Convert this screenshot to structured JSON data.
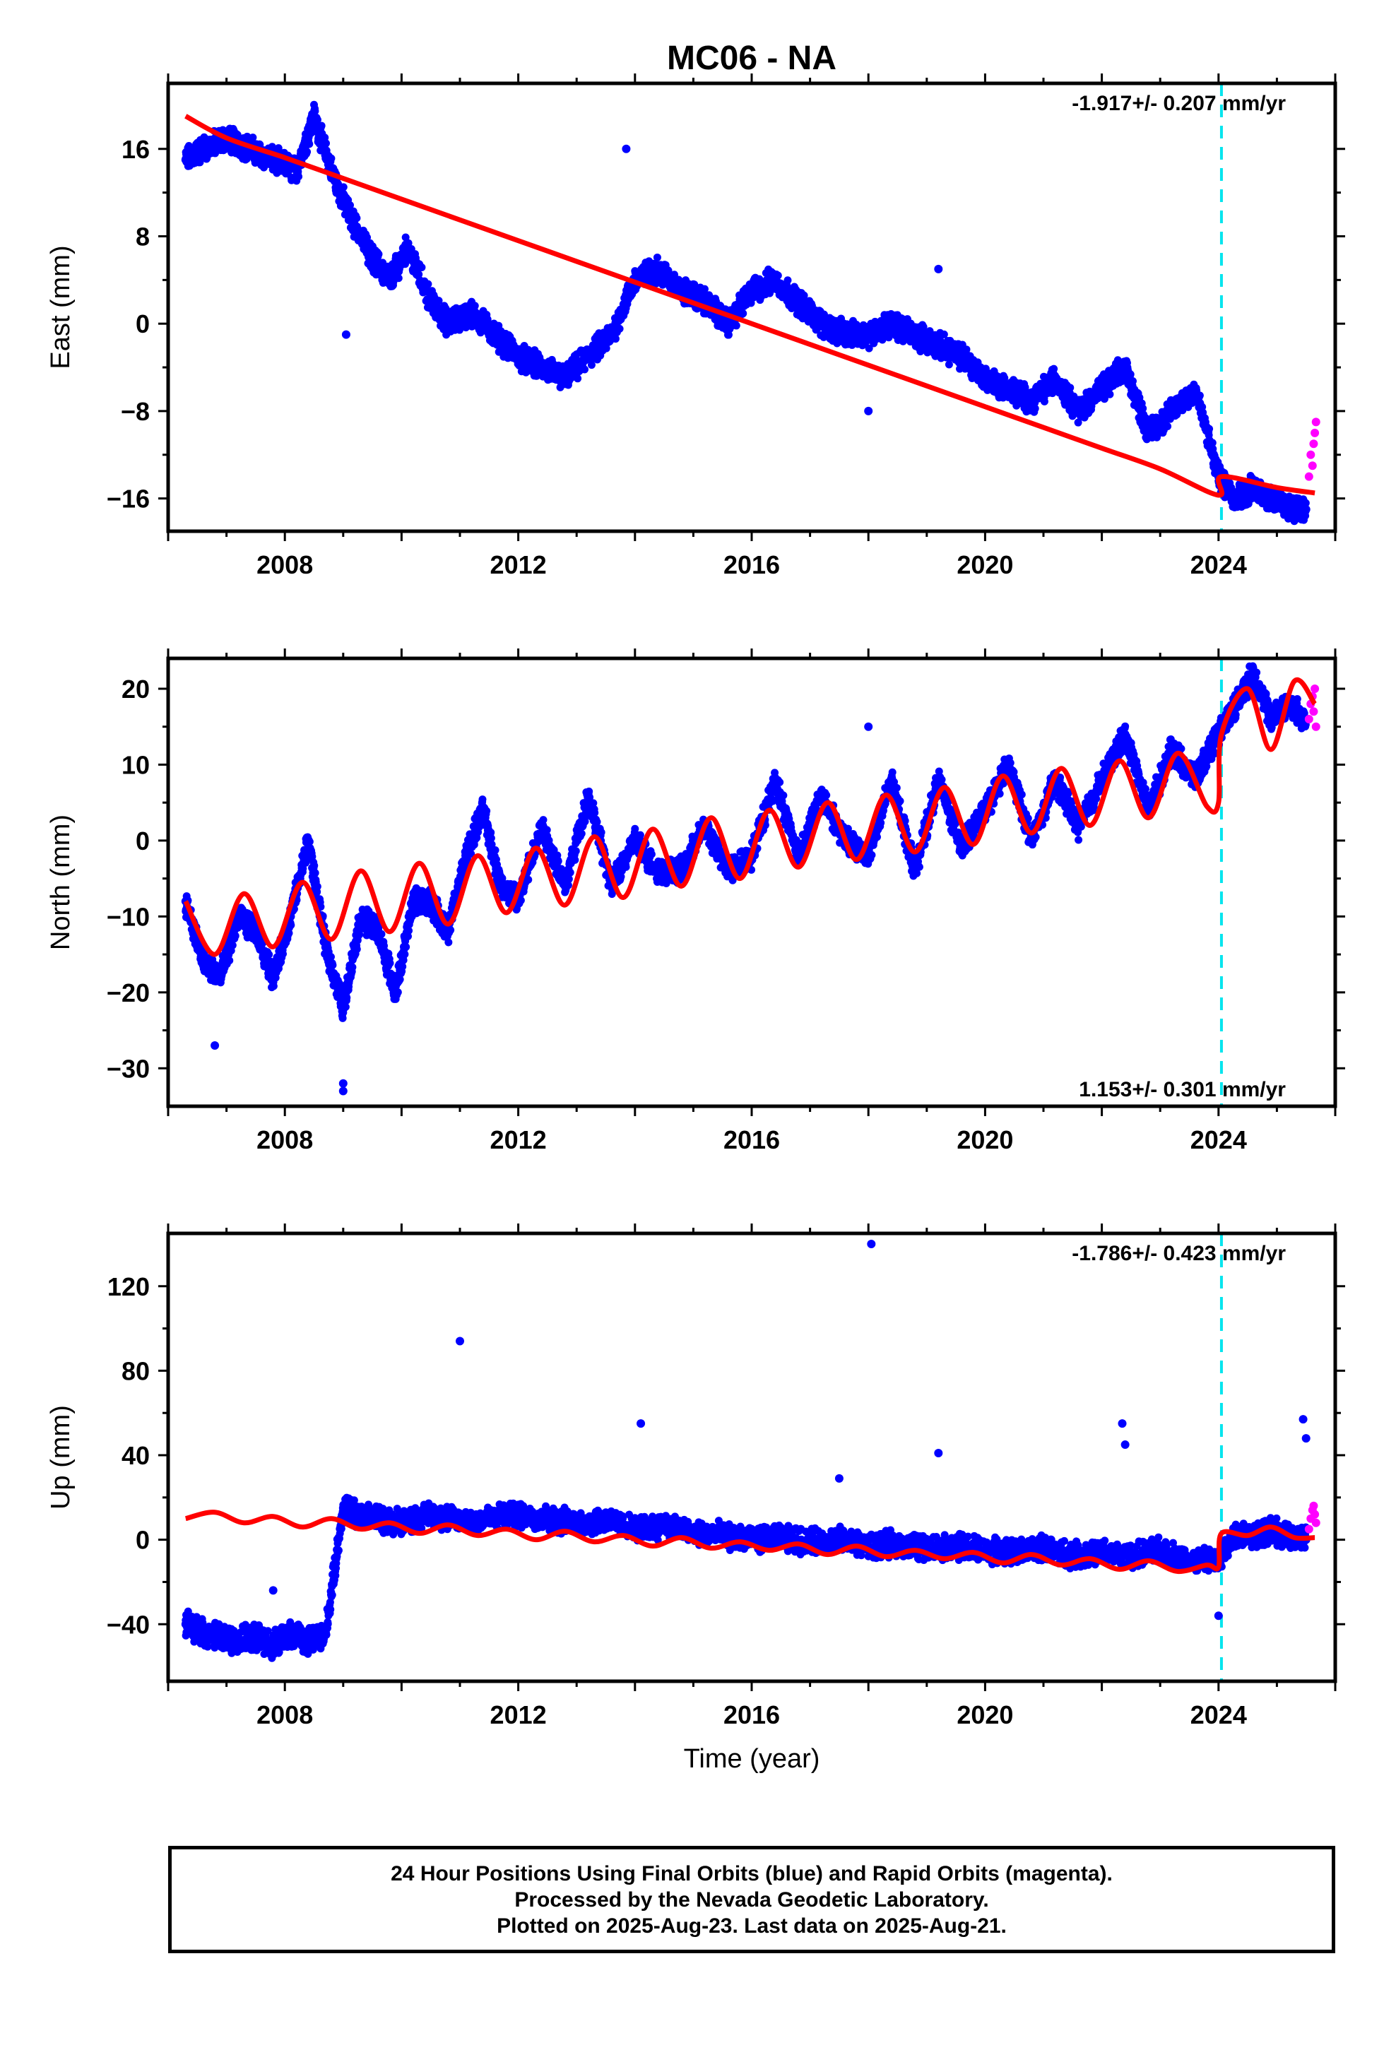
{
  "title": "MC06 - NA",
  "x_axis_label": "Time (year)",
  "footer": [
    "24 Hour Positions Using Final Orbits (blue) and Rapid Orbits (magenta).",
    "Processed by the Nevada Geodetic Laboratory.",
    "Plotted on 2025-Aug-23. Last data on 2025-Aug-21."
  ],
  "colors": {
    "final": "#0000ff",
    "rapid": "#ff00ff",
    "model": "#ff0000",
    "event": "#00e5ee"
  },
  "chart_data": [
    {
      "type": "scatter",
      "component": "east",
      "ylabel": "East (mm)",
      "rate_text": "-1.917+/- 0.207 mm/yr",
      "rate_position": "top-right",
      "xlim": [
        2006.0,
        2026.0
      ],
      "ylim": [
        -19,
        22
      ],
      "x_ticks": [
        2008,
        2012,
        2016,
        2020,
        2024
      ],
      "y_ticks": [
        -16,
        -8,
        0,
        8,
        16
      ],
      "event_line_x": 2024.05,
      "series": [
        {
          "role": "final",
          "x": [
            2006.3,
            2006.6,
            2007.0,
            2007.4,
            2007.8,
            2008.2,
            2008.5,
            2008.8,
            2009.1,
            2009.5,
            2009.8,
            2010.1,
            2010.5,
            2010.8,
            2011.2,
            2011.6,
            2012.0,
            2012.4,
            2012.8,
            2013.2,
            2013.6,
            2014.0,
            2014.4,
            2014.8,
            2015.2,
            2015.6,
            2016.0,
            2016.4,
            2016.8,
            2017.2,
            2017.6,
            2018.0,
            2018.4,
            2018.8,
            2019.2,
            2019.6,
            2020.0,
            2020.4,
            2020.8,
            2021.2,
            2021.6,
            2022.0,
            2022.4,
            2022.8,
            2023.2,
            2023.6,
            2024.0,
            2024.3,
            2024.6,
            2024.9,
            2025.2,
            2025.5
          ],
          "y": [
            15,
            16,
            17,
            16,
            15,
            14,
            19,
            14,
            10,
            6,
            4,
            7,
            2,
            0,
            1,
            -1,
            -3,
            -4,
            -5,
            -3,
            -1,
            4,
            5,
            3,
            2,
            0,
            3,
            4,
            2,
            0,
            -1,
            -1,
            0,
            -1,
            -2,
            -3,
            -5,
            -6,
            -7,
            -5,
            -8,
            -6,
            -4,
            -10,
            -8,
            -6,
            -14,
            -16,
            -15,
            -16,
            -17,
            -17
          ]
        },
        {
          "role": "rapid",
          "x": [
            2025.55,
            2025.58,
            2025.61,
            2025.63,
            2025.65,
            2025.67
          ],
          "y": [
            -14,
            -12,
            -13,
            -11,
            -10,
            -9
          ]
        },
        {
          "role": "outlier",
          "x": [
            2013.85,
            2009.05,
            2019.2,
            2018.0
          ],
          "y": [
            16,
            -1,
            5,
            -8
          ]
        },
        {
          "role": "model",
          "x": [
            2006.3,
            2007.0,
            2008.0,
            2009.0,
            2010.0,
            2011.0,
            2012.0,
            2013.0,
            2014.0,
            2015.0,
            2016.0,
            2017.0,
            2018.0,
            2019.0,
            2020.0,
            2021.0,
            2022.0,
            2023.0,
            2024.0,
            2024.05,
            2025.0,
            2025.65
          ],
          "y": [
            19,
            17,
            15.2,
            13.3,
            11.4,
            9.5,
            7.6,
            5.7,
            3.8,
            1.9,
            0,
            -1.9,
            -3.8,
            -5.7,
            -7.6,
            -9.5,
            -11.4,
            -13.3,
            -15.7,
            -14,
            -15,
            -15.5
          ]
        }
      ]
    },
    {
      "type": "scatter",
      "component": "north",
      "ylabel": "North (mm)",
      "rate_text": "1.153+/- 0.301 mm/yr",
      "rate_position": "bottom-right",
      "xlim": [
        2006.0,
        2026.0
      ],
      "ylim": [
        -35,
        24
      ],
      "x_ticks": [
        2008,
        2012,
        2016,
        2020,
        2024
      ],
      "y_ticks": [
        -30,
        -20,
        -10,
        0,
        10,
        20
      ],
      "event_line_x": 2024.05,
      "series": [
        {
          "role": "final",
          "x": [
            2006.3,
            2006.6,
            2006.9,
            2007.2,
            2007.5,
            2007.8,
            2008.1,
            2008.4,
            2008.7,
            2009.0,
            2009.3,
            2009.6,
            2009.9,
            2010.2,
            2010.5,
            2010.8,
            2011.1,
            2011.4,
            2011.7,
            2012.0,
            2012.4,
            2012.8,
            2013.2,
            2013.6,
            2014.0,
            2014.4,
            2014.8,
            2015.2,
            2015.6,
            2016.0,
            2016.4,
            2016.8,
            2017.2,
            2017.6,
            2018.0,
            2018.4,
            2018.8,
            2019.2,
            2019.6,
            2020.0,
            2020.4,
            2020.8,
            2021.2,
            2021.6,
            2022.0,
            2022.4,
            2022.8,
            2023.2,
            2023.6,
            2024.0,
            2024.3,
            2024.6,
            2024.9,
            2025.2,
            2025.5
          ],
          "y": [
            -8,
            -16,
            -18,
            -10,
            -12,
            -18,
            -10,
            0,
            -14,
            -22,
            -10,
            -12,
            -20,
            -8,
            -8,
            -12,
            -2,
            4,
            -6,
            -8,
            2,
            -6,
            6,
            -6,
            0,
            -4,
            -4,
            2,
            -4,
            -2,
            8,
            -2,
            6,
            0,
            -2,
            8,
            -4,
            8,
            -1,
            4,
            10,
            0,
            8,
            2,
            8,
            14,
            4,
            12,
            8,
            14,
            18,
            22,
            16,
            18,
            16
          ]
        },
        {
          "role": "rapid",
          "x": [
            2025.55,
            2025.58,
            2025.61,
            2025.63,
            2025.65,
            2025.67
          ],
          "y": [
            16,
            18,
            19,
            17,
            20,
            15
          ]
        },
        {
          "role": "outlier",
          "x": [
            2009.0,
            2009.0,
            2018.0,
            2006.8
          ],
          "y": [
            -32,
            -33,
            15,
            -27
          ]
        },
        {
          "role": "model",
          "x": [
            2006.3,
            2006.8,
            2007.3,
            2007.8,
            2008.3,
            2008.8,
            2009.3,
            2009.8,
            2010.3,
            2010.8,
            2011.3,
            2011.8,
            2012.3,
            2012.8,
            2013.3,
            2013.8,
            2014.3,
            2014.8,
            2015.3,
            2015.8,
            2016.3,
            2016.8,
            2017.3,
            2017.8,
            2018.3,
            2018.8,
            2019.3,
            2019.8,
            2020.3,
            2020.8,
            2021.3,
            2021.8,
            2022.3,
            2022.8,
            2023.3,
            2023.8,
            2024.0,
            2024.05,
            2024.5,
            2024.9,
            2025.3,
            2025.65
          ],
          "y": [
            -8,
            -15,
            -7,
            -14,
            -5.5,
            -13,
            -4,
            -12,
            -3,
            -11,
            -2,
            -9.5,
            -1,
            -8.5,
            0.5,
            -7.5,
            1.5,
            -6,
            3,
            -5,
            4,
            -3.5,
            5,
            -2.5,
            6,
            -1.5,
            7,
            -0.5,
            8.5,
            1,
            9.5,
            2,
            10.5,
            3,
            11.5,
            4.5,
            5,
            14,
            20,
            12,
            21,
            18
          ]
        }
      ]
    },
    {
      "type": "scatter",
      "component": "up",
      "ylabel": "Up (mm)",
      "rate_text": "-1.786+/- 0.423 mm/yr",
      "rate_position": "top-right",
      "xlim": [
        2006.0,
        2026.0
      ],
      "ylim": [
        -67,
        145
      ],
      "x_ticks": [
        2008,
        2012,
        2016,
        2020,
        2024
      ],
      "y_ticks": [
        -40,
        0,
        40,
        80,
        120
      ],
      "event_line_x": 2024.05,
      "series": [
        {
          "role": "final",
          "x": [
            2006.3,
            2006.6,
            2006.9,
            2007.2,
            2007.5,
            2007.8,
            2008.1,
            2008.4,
            2008.7,
            2009.0,
            2009.3,
            2009.6,
            2010.0,
            2010.5,
            2011.0,
            2011.5,
            2012.0,
            2012.5,
            2013.0,
            2013.5,
            2014.0,
            2014.5,
            2015.0,
            2015.5,
            2016.0,
            2016.5,
            2017.0,
            2017.5,
            2018.0,
            2018.5,
            2019.0,
            2019.5,
            2020.0,
            2020.5,
            2021.0,
            2021.5,
            2022.0,
            2022.5,
            2023.0,
            2023.5,
            2024.0,
            2024.3,
            2024.6,
            2024.9,
            2025.2,
            2025.5
          ],
          "y": [
            -40,
            -44,
            -46,
            -48,
            -46,
            -50,
            -45,
            -48,
            -44,
            15,
            12,
            10,
            8,
            12,
            9,
            10,
            12,
            10,
            8,
            9,
            5,
            7,
            3,
            2,
            0,
            1,
            -1,
            0,
            -3,
            -2,
            -4,
            -3,
            -5,
            -6,
            -4,
            -7,
            -6,
            -8,
            -5,
            -10,
            -10,
            3,
            2,
            5,
            1,
            0
          ]
        },
        {
          "role": "rapid",
          "x": [
            2025.55,
            2025.58,
            2025.61,
            2025.63,
            2025.65,
            2025.67
          ],
          "y": [
            5,
            10,
            14,
            16,
            12,
            8
          ]
        },
        {
          "role": "outlier",
          "x": [
            2018.05,
            2011.0,
            2014.1,
            2019.2,
            2022.35,
            2022.4,
            2025.45,
            2025.5,
            2017.5,
            2024.0,
            2007.8
          ],
          "y": [
            140,
            94,
            55,
            41,
            55,
            45,
            57,
            48,
            29,
            -36,
            -24
          ]
        },
        {
          "role": "model",
          "x": [
            2006.3,
            2006.8,
            2007.3,
            2007.8,
            2008.3,
            2008.8,
            2009.3,
            2009.8,
            2010.3,
            2010.8,
            2011.3,
            2011.8,
            2012.3,
            2012.8,
            2013.3,
            2013.8,
            2014.3,
            2014.8,
            2015.3,
            2015.8,
            2016.3,
            2016.8,
            2017.3,
            2017.8,
            2018.3,
            2018.8,
            2019.3,
            2019.8,
            2020.3,
            2020.8,
            2021.3,
            2021.8,
            2022.3,
            2022.8,
            2023.3,
            2023.8,
            2024.0,
            2024.05,
            2024.5,
            2024.9,
            2025.3,
            2025.65
          ],
          "y": [
            10,
            13,
            8,
            11,
            6,
            10,
            5,
            8,
            3,
            7,
            2,
            5,
            0,
            4,
            -1,
            2,
            -3,
            1,
            -4,
            -1,
            -5,
            -2,
            -7,
            -3,
            -8,
            -5,
            -9,
            -6,
            -11,
            -7,
            -12,
            -9,
            -14,
            -10,
            -15,
            -12,
            -13,
            3,
            2,
            6,
            1,
            1
          ]
        }
      ]
    }
  ]
}
